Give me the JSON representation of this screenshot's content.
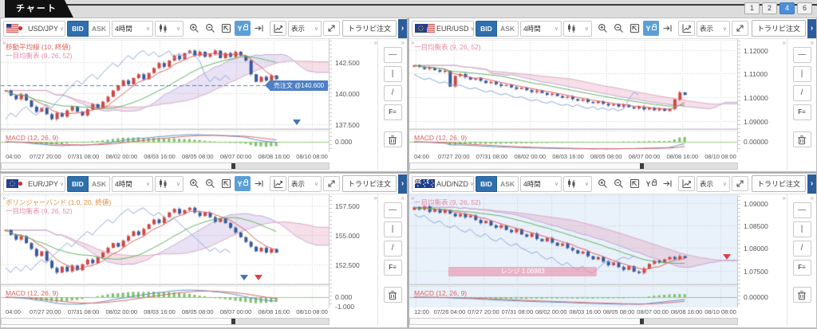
{
  "app": {
    "tab_chart": "チャート",
    "pages": [
      "1",
      "2",
      "4",
      "6"
    ],
    "active_page": "4"
  },
  "toolbar": {
    "bid": "BID",
    "ask": "ASK",
    "timeframe": "4時間",
    "display": "表示",
    "order": "トラリピ注文",
    "more": "›",
    "collapse": "»"
  },
  "drawbar_tools": [
    {
      "name": "horizontal-line-tool-button",
      "glyph": "—"
    },
    {
      "name": "vertical-line-tool-button",
      "glyph": "|"
    },
    {
      "name": "trendline-tool-button",
      "glyph": "/"
    },
    {
      "name": "fibonacci-tool-button",
      "glyph": "F≡"
    }
  ],
  "colors": {
    "accent": "#4d90d9",
    "bid_active": "#2f6fad",
    "candle_up": "#cf4743",
    "candle_down": "#39599c",
    "macd_hist": "#7cbf6b",
    "macd_line": "#5f94cc",
    "macd_signal": "#e06868",
    "cloud_bull": "rgba(148,125,205,0.22)",
    "cloud_bear": "rgba(226,150,180,0.30)"
  },
  "panels": [
    {
      "pair": "USD/JPY",
      "flags": [
        "us",
        "jp"
      ],
      "y_axis_locked": true,
      "indicator_labels": [
        {
          "text": "移動平均線 (10, 終値)",
          "color": "#e0635a"
        },
        {
          "text": "一目均衡表 (9, 26, 52)",
          "color": "#e58ca6"
        }
      ],
      "macd_label": {
        "text": "MACD (12, 26, 9)",
        "color": "#e06060"
      },
      "price_ticks": [
        {
          "value": 142.5,
          "label": "142.500"
        },
        {
          "value": 140.0,
          "label": "140.000"
        },
        {
          "value": 137.5,
          "label": "137.500"
        }
      ],
      "macd_tick_labels": [
        "0.000"
      ],
      "time_ticks": [
        "04:00",
        "07/27 20:00",
        "07/31 08:00",
        "08/02 00:00",
        "08/03 16:00",
        "08/05 08:00",
        "08/07 00:00",
        "08/08 16:00",
        "08/10 08:00"
      ],
      "domain": [
        137.3,
        144.2
      ],
      "closes": [
        140.2,
        139.8,
        139.5,
        139.9,
        139.4,
        138.9,
        138.5,
        138.8,
        138.3,
        137.9,
        138.4,
        138.1,
        138.6,
        138.9,
        138.5,
        138.2,
        138.7,
        139.1,
        138.8,
        139.3,
        139.7,
        140.2,
        140.6,
        141.0,
        140.7,
        141.2,
        141.5,
        141.1,
        141.6,
        142.0,
        142.4,
        142.1,
        142.6,
        143.0,
        142.7,
        143.2,
        143.4,
        143.0,
        143.3,
        142.9,
        143.1,
        143.4,
        142.8,
        143.2,
        142.9,
        143.3,
        143.0,
        142.6,
        141.5,
        140.9,
        141.3,
        141.0,
        141.4,
        141.1
      ],
      "order_tag": {
        "label": "売注文 @140.600",
        "price": 140.6,
        "color": "#4d7fc4"
      },
      "markers": [
        {
          "color": "#4273b8",
          "x": 0.9,
          "y": 0.94
        }
      ],
      "plot_bg": "#ffffff"
    },
    {
      "pair": "EUR/USD",
      "flags": [
        "eu",
        "us"
      ],
      "y_axis_locked": true,
      "indicator_labels": [
        {
          "text": "一目均衡表 (9, 26, 52)",
          "color": "#e58ca6"
        }
      ],
      "macd_label": {
        "text": "MACD (12, 26, 9)",
        "color": "#e06060"
      },
      "price_ticks": [
        {
          "value": 1.12,
          "label": "1.12000"
        },
        {
          "value": 1.11,
          "label": "1.11000"
        },
        {
          "value": 1.1,
          "label": "1.10000"
        },
        {
          "value": 1.09,
          "label": "1.09000"
        }
      ],
      "macd_tick_labels": [
        "0.00000"
      ],
      "time_ticks": [
        "04:00",
        "07/27 20:00",
        "07/31 08:00",
        "08/02 00:00",
        "08/03 16:00",
        "08/05 08:00",
        "08/07 00:00",
        "08/08 16:00",
        "08/10 08:00"
      ],
      "domain": [
        1.0875,
        1.124
      ],
      "closes": [
        1.1135,
        1.1128,
        1.112,
        1.1125,
        1.1115,
        1.1108,
        1.1112,
        1.1045,
        1.109,
        1.1098,
        1.1085,
        1.1075,
        1.108,
        1.107,
        1.106,
        1.1065,
        1.1055,
        1.1048,
        1.1052,
        1.1042,
        1.1035,
        1.104,
        1.103,
        1.1022,
        1.1028,
        1.1018,
        1.101,
        1.1015,
        1.1005,
        1.0998,
        1.1002,
        1.0992,
        1.0985,
        1.099,
        1.098,
        1.0975,
        1.0982,
        1.0972,
        1.0965,
        1.097,
        1.096,
        1.0968,
        1.0958,
        1.0952,
        1.096,
        1.0948,
        1.0955,
        1.0945,
        1.0952,
        1.0942,
        1.095,
        1.099,
        1.102,
        1.101
      ],
      "markers": [],
      "plot_bg": "#ffffff"
    },
    {
      "pair": "EUR/JPY",
      "flags": [
        "eu",
        "jp"
      ],
      "y_axis_locked": true,
      "indicator_labels": [
        {
          "text": "ボリンジャーバンド (1.0, 20, 終値)",
          "color": "#e2903f"
        },
        {
          "text": "一目均衡表 (9, 26, 52)",
          "color": "#e58ca6"
        }
      ],
      "macd_label": {
        "text": "MACD (12, 26, 9)",
        "color": "#e06060"
      },
      "price_ticks": [
        {
          "value": 157.5,
          "label": "157.500"
        },
        {
          "value": 155.0,
          "label": "155.000"
        },
        {
          "value": 152.5,
          "label": "152.500"
        }
      ],
      "macd_tick_labels": [
        "0.000",
        "-1.000"
      ],
      "time_ticks": [
        "04:00",
        "07/27 20:00",
        "07/31 08:00",
        "08/02 00:00",
        "08/03 16:00",
        "08/05 08:00",
        "08/07 00:00",
        "08/08 16:00",
        "08/10 08:00"
      ],
      "domain": [
        151.0,
        158.3
      ],
      "closes": [
        155.4,
        155.0,
        154.6,
        154.9,
        154.3,
        153.8,
        153.2,
        153.6,
        152.8,
        152.2,
        151.8,
        152.3,
        151.9,
        152.4,
        152.0,
        152.5,
        152.9,
        152.6,
        153.1,
        153.5,
        153.9,
        154.3,
        154.0,
        154.5,
        154.9,
        155.3,
        155.0,
        155.5,
        155.9,
        156.3,
        156.0,
        156.5,
        156.9,
        157.2,
        156.8,
        157.1,
        157.3,
        156.9,
        156.6,
        156.9,
        156.5,
        156.1,
        156.4,
        156.0,
        155.6,
        155.2,
        154.8,
        154.4,
        154.0,
        153.6,
        153.9,
        153.5,
        153.8,
        153.5
      ],
      "markers": [
        {
          "color": "#4273b8",
          "x": 0.74,
          "y": 0.94
        },
        {
          "color": "#d9434e",
          "x": 0.785,
          "y": 0.94
        }
      ],
      "plot_bg": "#ffffff"
    },
    {
      "pair": "AUD/NZD",
      "flags": [
        "au",
        "nz"
      ],
      "y_axis_locked": false,
      "indicator_labels": [
        {
          "text": "一目均衡表 (9, 26, 52)",
          "color": "#e58ca6"
        }
      ],
      "macd_label": {
        "text": "MACD (12, 26, 9)",
        "color": "#e06060"
      },
      "price_ticks": [
        {
          "value": 1.09,
          "label": "1.09000"
        },
        {
          "value": 1.085,
          "label": "1.08500"
        },
        {
          "value": 1.08,
          "label": "1.08000"
        },
        {
          "value": 1.075,
          "label": "1.07500"
        }
      ],
      "macd_tick_labels": [
        "0.00000"
      ],
      "time_ticks": [
        "12:00",
        "07/26 04:00",
        "07/27 20:00",
        "07/31 08:00",
        "08/02 00:00",
        "08/03 16:00",
        "08/05 08:00",
        "08/07 00:00",
        "08/08 16:00",
        "08/10 08:00"
      ],
      "domain": [
        1.0725,
        1.0915
      ],
      "closes": [
        1.089,
        1.0885,
        1.0892,
        1.088,
        1.0886,
        1.0878,
        1.0884,
        1.0876,
        1.087,
        1.0875,
        1.0868,
        1.0872,
        1.0862,
        1.0855,
        1.086,
        1.085,
        1.0845,
        1.085,
        1.084,
        1.0835,
        1.0842,
        1.083,
        1.0825,
        1.0832,
        1.082,
        1.0815,
        1.0822,
        1.0812,
        1.0805,
        1.081,
        1.08,
        1.0795,
        1.0788,
        1.0792,
        1.0782,
        1.0775,
        1.078,
        1.077,
        1.0762,
        1.0768,
        1.0758,
        1.0752,
        1.076,
        1.0748,
        1.0745,
        1.0755,
        1.0765,
        1.0772,
        1.0768,
        1.0775,
        1.078,
        1.0776,
        1.0782,
        1.0778
      ],
      "range_tag": {
        "label": "レンジ 1.06983",
        "x": 0.12,
        "y": 0.82,
        "w": 0.45,
        "color": "rgba(233,148,170,0.65)"
      },
      "markers": [
        {
          "color": "#d9434e",
          "x": 0.965,
          "y": 0.7
        }
      ],
      "plot_bg": "#e9f1fb"
    }
  ]
}
